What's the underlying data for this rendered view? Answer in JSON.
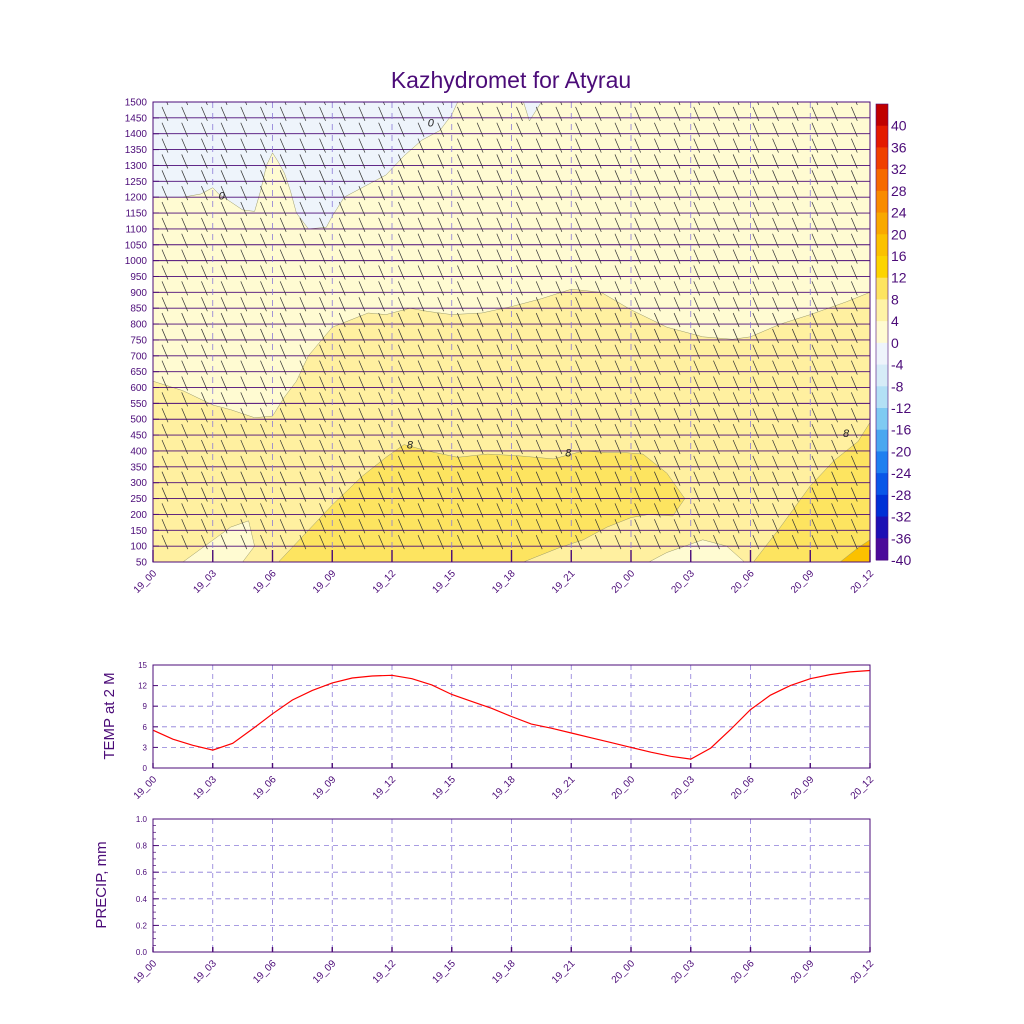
{
  "chart_data": [
    {
      "type": "heatmap",
      "title": "Kazhydromet for Atyrau",
      "xlabel": "",
      "ylabel": "",
      "x_ticks": [
        "19_00",
        "19_03",
        "19_06",
        "19_09",
        "19_12",
        "19_15",
        "19_18",
        "19_21",
        "20_00",
        "20_03",
        "20_06",
        "20_09",
        "20_12"
      ],
      "y_ticks": [
        50,
        100,
        150,
        200,
        250,
        300,
        350,
        400,
        450,
        500,
        550,
        600,
        650,
        700,
        750,
        800,
        850,
        900,
        950,
        1000,
        1050,
        1100,
        1150,
        1200,
        1250,
        1300,
        1350,
        1400,
        1450,
        1500
      ],
      "ylim": [
        50,
        1500
      ],
      "y_reversed": false,
      "colorbar": {
        "labels": [
          "40",
          "36",
          "32",
          "28",
          "24",
          "20",
          "16",
          "12",
          "8",
          "4",
          "0",
          "-4",
          "-8",
          "-12",
          "-16",
          "-20",
          "-24",
          "-28",
          "-32",
          "-36",
          "-40"
        ],
        "colors": [
          "#c00000",
          "#e41a00",
          "#f04000",
          "#f66a00",
          "#f98b00",
          "#f9a800",
          "#fbc100",
          "#fcd400",
          "#fde460",
          "#fef3a6",
          "#fffbd2",
          "#eef4fb",
          "#d6ecf7",
          "#b3e0f5",
          "#7fcaf2",
          "#4aa7f0",
          "#1f7ff0",
          "#0a56e8",
          "#0030d6",
          "#1d10b4",
          "#4b0b9a"
        ]
      },
      "contour_labels": [
        "0",
        "0",
        "8",
        "8",
        "8"
      ],
      "fill_colors": {
        "below_0": "#eef4fb",
        "0_to_4": "#fffbd2",
        "4_to_8": "#fff0a0",
        "8_to_12": "#fde460",
        "above_12": "#fbc100"
      },
      "wind_barbs": true
    },
    {
      "type": "line",
      "ylabel": "TEMP at 2 M",
      "xlabel": "",
      "ylim": [
        0,
        15
      ],
      "y_ticks": [
        "0",
        "3",
        "6",
        "9",
        "12",
        "15"
      ],
      "x_ticks": [
        "19_00",
        "19_03",
        "19_06",
        "19_09",
        "19_12",
        "19_15",
        "19_18",
        "19_21",
        "20_00",
        "20_03",
        "20_06",
        "20_09",
        "20_12"
      ],
      "grid": true,
      "line_color": "#ff0000",
      "series": [
        {
          "x": [
            0,
            1,
            2,
            3,
            4,
            5,
            6,
            7,
            8,
            9,
            10,
            11,
            12,
            13,
            14,
            15,
            16,
            17,
            18,
            19,
            20,
            21,
            22,
            23,
            24,
            25,
            26,
            27,
            28,
            29,
            30,
            31,
            32,
            33,
            34,
            35,
            36
          ],
          "values": [
            5.5,
            4.2,
            3.3,
            2.6,
            3.6,
            5.7,
            7.9,
            9.9,
            11.3,
            12.4,
            13.1,
            13.4,
            13.5,
            13.0,
            12.1,
            10.7,
            9.7,
            8.7,
            7.5,
            6.4,
            5.8,
            5.1,
            4.4,
            3.7,
            3.0,
            2.3,
            1.7,
            1.3,
            2.9,
            5.6,
            8.5,
            10.6,
            12.0,
            13.0,
            13.6,
            14.0,
            14.2
          ]
        }
      ]
    },
    {
      "type": "line",
      "ylabel": "PRECIP, mm",
      "xlabel": "",
      "ylim": [
        0,
        1
      ],
      "y_ticks": [
        "0.0",
        "0.2",
        "0.4",
        "0.6",
        "0.8",
        "1.0"
      ],
      "x_ticks": [
        "19_00",
        "19_03",
        "19_06",
        "19_09",
        "19_12",
        "19_15",
        "19_18",
        "19_21",
        "20_00",
        "20_03",
        "20_06",
        "20_09",
        "20_12"
      ],
      "grid": true,
      "series": []
    }
  ]
}
